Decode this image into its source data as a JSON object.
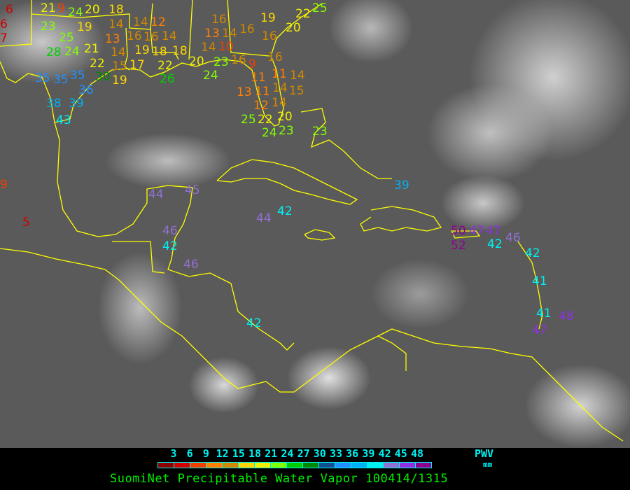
{
  "title": "SuomiNet Precipitable Water Vapor 100414/1315",
  "legend": {
    "unit_label": "PWV",
    "unit": "mm",
    "ticks": [
      "3",
      "6",
      "9",
      "12",
      "15",
      "18",
      "21",
      "24",
      "27",
      "30",
      "33",
      "36",
      "39",
      "42",
      "45",
      "48"
    ],
    "colors": [
      "#8b0000",
      "#d00000",
      "#f04000",
      "#ff8000",
      "#d08800",
      "#ffd800",
      "#f0f000",
      "#80ff00",
      "#00d000",
      "#008800",
      "#104f90",
      "#2090ff",
      "#00b0f0",
      "#00f0f0",
      "#9070d0",
      "#9030e0",
      "#900090"
    ]
  },
  "coastline_color": "#ffff00",
  "stations": [
    "6",
    "6",
    "7",
    "21",
    "9",
    "24",
    "20",
    "19",
    "18",
    "14",
    "14",
    "12",
    "23",
    "25",
    "24",
    "28",
    "21",
    "13",
    "14",
    "16",
    "16",
    "19",
    "18",
    "14",
    "17",
    "18",
    "22",
    "22",
    "15",
    "19",
    "26",
    "30",
    "35",
    "35",
    "35",
    "36",
    "39",
    "38",
    "43",
    "9",
    "5",
    "16",
    "13",
    "14",
    "10",
    "14",
    "16",
    "19",
    "16",
    "20",
    "22",
    "25",
    "16",
    "23",
    "20",
    "24",
    "16",
    "9",
    "11",
    "11",
    "11",
    "14",
    "14",
    "15",
    "13",
    "14",
    "12",
    "20",
    "22",
    "23",
    "25",
    "24",
    "23",
    "39",
    "45",
    "44",
    "42",
    "44",
    "46",
    "42",
    "46",
    "42",
    "50",
    "47",
    "47",
    "52",
    "42",
    "46",
    "42",
    "41",
    "41",
    "48",
    "47"
  ]
}
